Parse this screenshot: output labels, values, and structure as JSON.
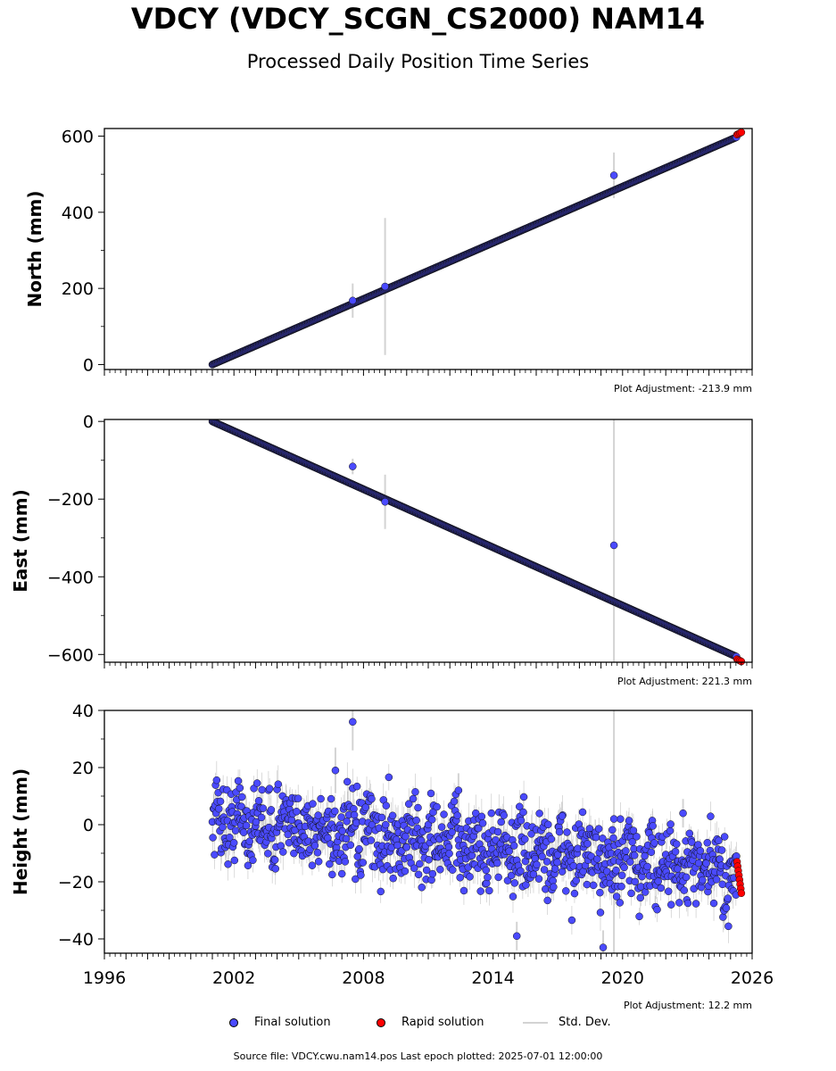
{
  "header": {
    "title": "VDCY (VDCY_SCGN_CS2000) NAM14",
    "subtitle": "Processed Daily Position Time Series"
  },
  "footer": {
    "source": "Source file: VDCY.cwu.nam14.pos  Last epoch plotted: 2025-07-01 12:00:00"
  },
  "legend": [
    {
      "label": "Final solution",
      "color": "#4a4aff"
    },
    {
      "label": "Rapid solution",
      "color": "#ff0000"
    },
    {
      "label": "Std. Dev.",
      "color": "#d3d3d3"
    }
  ],
  "colors": {
    "final": "#4a4aff",
    "rapid": "#ff0000",
    "stddev": "#d3d3d3"
  },
  "chart_data": [
    {
      "type": "scatter",
      "ylabel": "North (mm)",
      "ylim": [
        -13,
        620
      ],
      "yticks": [
        0,
        200,
        400,
        600
      ],
      "ytick_labels": [
        "0",
        "200",
        "400",
        "600"
      ],
      "xlim": [
        1996,
        2026
      ],
      "adjustment": "Plot Adjustment: -213.9 mm",
      "trend": {
        "x0": 2001.0,
        "y0": 0,
        "slope": 24.6
      },
      "outliers": [
        {
          "x": 2019.6,
          "y": 497,
          "err": 60
        },
        {
          "x": 2007.5,
          "y": 168,
          "err": 45
        },
        {
          "x": 2009.0,
          "y": 205,
          "err": 180
        }
      ],
      "rapid": {
        "x0": 2025.3,
        "x1": 2025.5,
        "y0": 604,
        "y1": 610
      }
    },
    {
      "type": "scatter",
      "ylabel": "East (mm)",
      "ylim": [
        -620,
        5
      ],
      "yticks": [
        0,
        -200,
        -400,
        -600
      ],
      "ytick_labels": [
        "0",
        "−200",
        "−400",
        "−600"
      ],
      "xlim": [
        1996,
        2026
      ],
      "adjustment": "Plot Adjustment: 221.3 mm",
      "trend": {
        "x0": 2001.0,
        "y0": 0,
        "slope": -24.95
      },
      "outliers": [
        {
          "x": 2007.5,
          "y": -116,
          "err": 20
        },
        {
          "x": 2019.6,
          "y": -319,
          "err": 360
        },
        {
          "x": 2009.0,
          "y": -207,
          "err": 70
        }
      ],
      "rapid": {
        "x0": 2025.3,
        "x1": 2025.5,
        "y0": -612,
        "y1": -618
      }
    },
    {
      "type": "scatter",
      "ylabel": "Height (mm)",
      "ylim": [
        -45,
        40
      ],
      "yticks": [
        40,
        20,
        0,
        -20,
        -40
      ],
      "ytick_labels": [
        "40",
        "20",
        "0",
        "−20",
        "−40"
      ],
      "xticks": [
        1996,
        2002,
        2008,
        2014,
        2020,
        2026
      ],
      "xtick_labels": [
        "1996",
        "2002",
        "2008",
        "2014",
        "2020",
        "2026"
      ],
      "xlim": [
        1996,
        2026
      ],
      "adjustment": "Plot Adjustment: 12.2 mm",
      "trend": {
        "x0": 2001.0,
        "y0": 2,
        "slope": -0.8
      },
      "noise": 7,
      "outliers": [
        {
          "x": 2007.5,
          "y": 36,
          "err": 10
        },
        {
          "x": 2006.7,
          "y": 19,
          "err": 8
        },
        {
          "x": 2012.4,
          "y": 12,
          "err": 6
        },
        {
          "x": 2017.2,
          "y": 3,
          "err": 5
        },
        {
          "x": 2019.6,
          "y": 2,
          "err": 60
        },
        {
          "x": 2019.1,
          "y": -43,
          "err": 6
        },
        {
          "x": 2022.8,
          "y": 4,
          "err": 5
        },
        {
          "x": 2015.1,
          "y": -39,
          "err": 5
        }
      ],
      "rapid": {
        "x0": 2025.3,
        "x1": 2025.5,
        "y0": -13,
        "y1": -24
      }
    }
  ]
}
